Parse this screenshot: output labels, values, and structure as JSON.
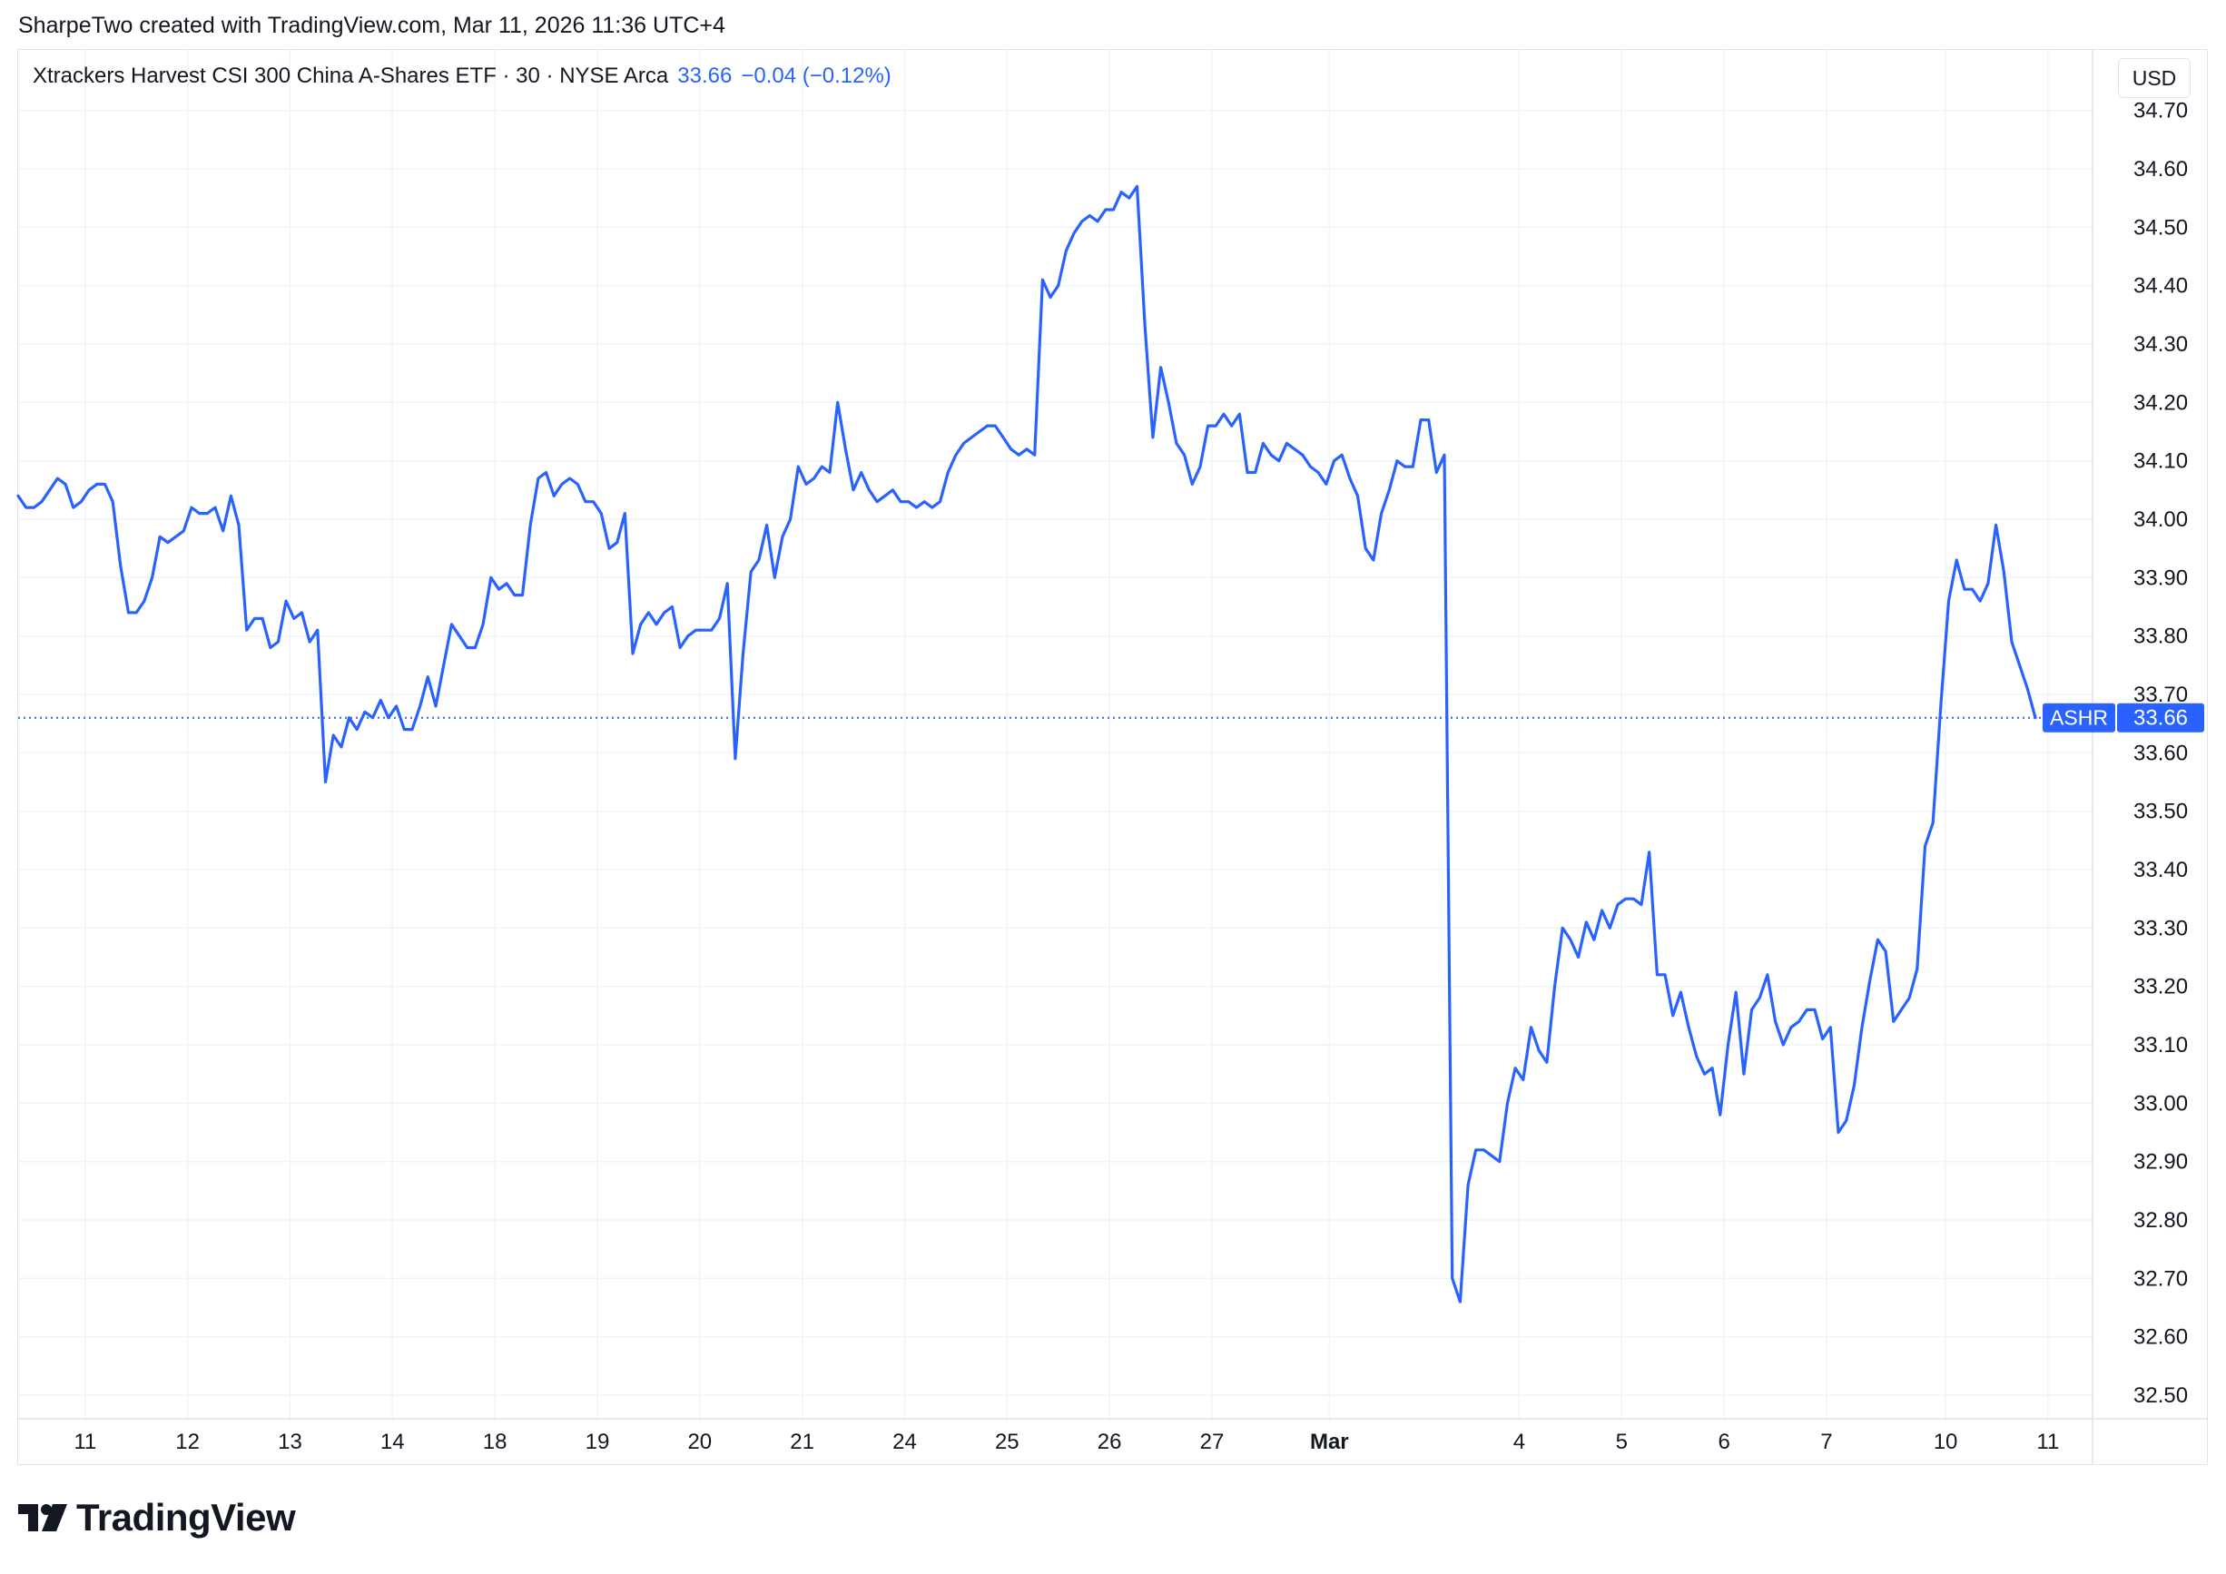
{
  "attribution": "SharpeTwo created with TradingView.com, Mar 11, 2026 11:36 UTC+4",
  "legend": {
    "symbol": "Xtrackers Harvest CSI 300 China A-Shares ETF · 30 · NYSE Arca",
    "last": "33.66",
    "change": "−0.04 (−0.12%)"
  },
  "currency_button": "USD",
  "price_tag": {
    "ticker": "ASHR",
    "value": "33.66"
  },
  "brand": "TradingView",
  "colors": {
    "line": "#2962ff",
    "grid": "#f0f3fa",
    "axis_text": "#131722",
    "border": "#e0e3eb"
  },
  "chart_data": {
    "type": "line",
    "title": "",
    "xlabel": "",
    "ylabel": "",
    "ylim": [
      32.5,
      34.7
    ],
    "grid": true,
    "last_price": 33.66,
    "y_ticks": [
      32.5,
      32.6,
      32.7,
      32.8,
      32.9,
      33.0,
      33.1,
      33.2,
      33.3,
      33.4,
      33.5,
      33.6,
      33.7,
      33.8,
      33.9,
      34.0,
      34.1,
      34.2,
      34.3,
      34.4,
      34.5,
      34.6,
      34.7
    ],
    "y_tick_labels": [
      "32.50",
      "32.60",
      "32.70",
      "32.80",
      "32.90",
      "33.00",
      "33.10",
      "33.20",
      "33.30",
      "33.40",
      "33.50",
      "33.60",
      "33.70",
      "33.80",
      "33.90",
      "34.00",
      "34.10",
      "34.20",
      "34.30",
      "34.40",
      "34.50",
      "34.60",
      "34.70"
    ],
    "x_ticks": [
      {
        "label": "11",
        "bar": 8.5
      },
      {
        "label": "12",
        "bar": 21.5
      },
      {
        "label": "13",
        "bar": 34.5
      },
      {
        "label": "14",
        "bar": 47.5
      },
      {
        "label": "18",
        "bar": 60.5
      },
      {
        "label": "19",
        "bar": 73.5
      },
      {
        "label": "20",
        "bar": 86.5
      },
      {
        "label": "21",
        "bar": 99.5
      },
      {
        "label": "24",
        "bar": 112.5
      },
      {
        "label": "25",
        "bar": 125.5
      },
      {
        "label": "26",
        "bar": 138.5
      },
      {
        "label": "27",
        "bar": 151.5
      },
      {
        "label": "Mar",
        "bar": 166.4,
        "bold": true
      },
      {
        "label": "4",
        "bar": 190.5
      },
      {
        "label": "5",
        "bar": 203.5
      },
      {
        "label": "6",
        "bar": 216.5
      },
      {
        "label": "7",
        "bar": 229.5
      },
      {
        "label": "10",
        "bar": 244.6
      },
      {
        "label": "11",
        "bar": 257.6
      }
    ],
    "series": [
      {
        "values": [
          34.04,
          34.02,
          34.02,
          34.03,
          34.05,
          34.07,
          34.06,
          34.02,
          34.03,
          34.05,
          34.06,
          34.06,
          34.03,
          33.92,
          33.84,
          33.84,
          33.86,
          33.9,
          33.97,
          33.96,
          33.97,
          33.98,
          34.02,
          34.01,
          34.01,
          34.02,
          33.98,
          34.04,
          33.99,
          33.81,
          33.83,
          33.83,
          33.78,
          33.79,
          33.86,
          33.83,
          33.84,
          33.79,
          33.81,
          33.55,
          33.63,
          33.61,
          33.66,
          33.64,
          33.67,
          33.66,
          33.69,
          33.66,
          33.68,
          33.64,
          33.64,
          33.68,
          33.73,
          33.68,
          33.75,
          33.82,
          33.8,
          33.78,
          33.78,
          33.82,
          33.9,
          33.88,
          33.89,
          33.87,
          33.87,
          33.99,
          34.07,
          34.08,
          34.04,
          34.06,
          34.07,
          34.06,
          34.03,
          34.03,
          34.01,
          33.95,
          33.96,
          34.01,
          33.77,
          33.82,
          33.84,
          33.82,
          33.84,
          33.85,
          33.78,
          33.8,
          33.81,
          33.81,
          33.81,
          33.83,
          33.89,
          33.59,
          33.77,
          33.91,
          33.93,
          33.99,
          33.9,
          33.97,
          34.0,
          34.09,
          34.06,
          34.07,
          34.09,
          34.08,
          34.2,
          34.12,
          34.05,
          34.08,
          34.05,
          34.03,
          34.04,
          34.05,
          34.03,
          34.03,
          34.02,
          34.03,
          34.02,
          34.03,
          34.08,
          34.11,
          34.13,
          34.14,
          34.15,
          34.16,
          34.16,
          34.14,
          34.12,
          34.11,
          34.12,
          34.11,
          34.41,
          34.38,
          34.4,
          34.46,
          34.49,
          34.51,
          34.52,
          34.51,
          34.53,
          34.53,
          34.56,
          34.55,
          34.57,
          34.33,
          34.14,
          34.26,
          34.2,
          34.13,
          34.11,
          34.06,
          34.09,
          34.16,
          34.16,
          34.18,
          34.16,
          34.18,
          34.08,
          34.08,
          34.13,
          34.11,
          34.1,
          34.13,
          34.12,
          34.11,
          34.09,
          34.08,
          34.06,
          34.1,
          34.11,
          34.07,
          34.04,
          33.95,
          33.93,
          34.01,
          34.05,
          34.1,
          34.09,
          34.09,
          34.17,
          34.17,
          34.08,
          34.11,
          32.7,
          32.66,
          32.86,
          32.92,
          32.92,
          32.91,
          32.9,
          33.0,
          33.06,
          33.04,
          33.13,
          33.09,
          33.07,
          33.2,
          33.3,
          33.28,
          33.25,
          33.31,
          33.28,
          33.33,
          33.3,
          33.34,
          33.35,
          33.35,
          33.34,
          33.43,
          33.22,
          33.22,
          33.15,
          33.19,
          33.13,
          33.08,
          33.05,
          33.06,
          32.98,
          33.1,
          33.19,
          33.05,
          33.16,
          33.18,
          33.22,
          33.14,
          33.1,
          33.13,
          33.14,
          33.16,
          33.16,
          33.11,
          33.13,
          32.95,
          32.97,
          33.03,
          33.13,
          33.21,
          33.28,
          33.26,
          33.14,
          33.16,
          33.18,
          33.23,
          33.44,
          33.48,
          33.68,
          33.86,
          33.93,
          33.88,
          33.88,
          33.86,
          33.89,
          33.99,
          33.91,
          33.79,
          33.75,
          33.71,
          33.66
        ]
      }
    ]
  }
}
